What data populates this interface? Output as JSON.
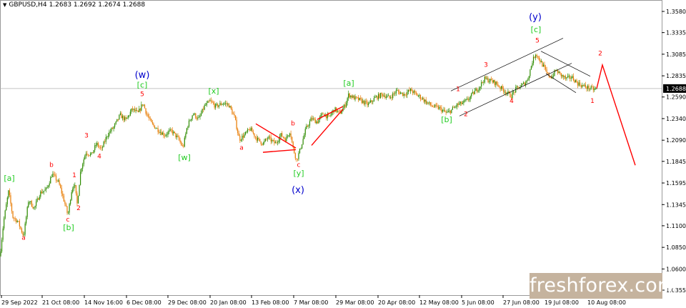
{
  "header": {
    "symbol": "GBPUSD,H4",
    "ohlc": "1.2683 1.2692 1.2674 1.2688"
  },
  "watermark": {
    "text": "freshforex.com"
  },
  "colors": {
    "bull": "#2e8b00",
    "bear": "#e87a00",
    "wave": "#ff0000",
    "green_label": "#22cc22",
    "blue_label": "#0000cc",
    "channel": "#000000",
    "grid": "#e6e6e6",
    "price_tag_bg": "#000000"
  },
  "chart_data": {
    "type": "candlestick",
    "timeframe": "H4",
    "current_price": 1.2688,
    "ylim": [
      1.03,
      1.365
    ],
    "y_ticks": [
      1.358,
      1.3335,
      1.3085,
      1.2835,
      1.259,
      1.234,
      1.209,
      1.1845,
      1.1595,
      1.1345,
      1.11,
      1.085,
      1.06,
      1.0355
    ],
    "x_ticks": [
      "29 Sep 2022",
      "21 Oct 08:00",
      "14 Nov 16:00",
      "6 Dec 08:00",
      "29 Dec 08:00",
      "20 Jan 08:00",
      "13 Feb 08:00",
      "7 Mar 08:00",
      "29 Mar 08:00",
      "20 Apr 08:00",
      "12 May 08:00",
      "5 Jun 08:00",
      "27 Jun 08:00",
      "19 Jul 08:00",
      "10 Aug 08:00"
    ],
    "price_path": [
      [
        0,
        1.075
      ],
      [
        5,
        1.115
      ],
      [
        12,
        1.15
      ],
      [
        18,
        1.12
      ],
      [
        25,
        1.115
      ],
      [
        33,
        1.098
      ],
      [
        40,
        1.14
      ],
      [
        48,
        1.13
      ],
      [
        56,
        1.148
      ],
      [
        65,
        1.152
      ],
      [
        73,
        1.17
      ],
      [
        82,
        1.16
      ],
      [
        90,
        1.138
      ],
      [
        95,
        1.122
      ],
      [
        100,
        1.15
      ],
      [
        104,
        1.16
      ],
      [
        108,
        1.135
      ],
      [
        113,
        1.175
      ],
      [
        120,
        1.195
      ],
      [
        128,
        1.192
      ],
      [
        135,
        1.205
      ],
      [
        142,
        1.198
      ],
      [
        150,
        1.215
      ],
      [
        160,
        1.225
      ],
      [
        168,
        1.238
      ],
      [
        176,
        1.232
      ],
      [
        185,
        1.245
      ],
      [
        193,
        1.24
      ],
      [
        200,
        1.252
      ],
      [
        205,
        1.24
      ],
      [
        212,
        1.228
      ],
      [
        220,
        1.222
      ],
      [
        230,
        1.215
      ],
      [
        240,
        1.22
      ],
      [
        250,
        1.21
      ],
      [
        256,
        1.2
      ],
      [
        262,
        1.225
      ],
      [
        270,
        1.24
      ],
      [
        278,
        1.233
      ],
      [
        286,
        1.248
      ],
      [
        294,
        1.254
      ],
      [
        302,
        1.248
      ],
      [
        312,
        1.252
      ],
      [
        320,
        1.25
      ],
      [
        328,
        1.236
      ],
      [
        335,
        1.21
      ],
      [
        342,
        1.215
      ],
      [
        350,
        1.222
      ],
      [
        360,
        1.21
      ],
      [
        368,
        1.205
      ],
      [
        375,
        1.212
      ],
      [
        385,
        1.205
      ],
      [
        393,
        1.215
      ],
      [
        400,
        1.21
      ],
      [
        406,
        1.22
      ],
      [
        410,
        1.2
      ],
      [
        415,
        1.186
      ],
      [
        420,
        1.198
      ],
      [
        428,
        1.222
      ],
      [
        436,
        1.234
      ],
      [
        444,
        1.23
      ],
      [
        452,
        1.24
      ],
      [
        460,
        1.235
      ],
      [
        468,
        1.245
      ],
      [
        476,
        1.24
      ],
      [
        483,
        1.25
      ],
      [
        488,
        1.262
      ],
      [
        495,
        1.258
      ],
      [
        505,
        1.255
      ],
      [
        515,
        1.25
      ],
      [
        525,
        1.258
      ],
      [
        535,
        1.262
      ],
      [
        545,
        1.258
      ],
      [
        555,
        1.266
      ],
      [
        565,
        1.262
      ],
      [
        575,
        1.267
      ],
      [
        582,
        1.262
      ],
      [
        590,
        1.258
      ],
      [
        598,
        1.252
      ],
      [
        606,
        1.248
      ],
      [
        615,
        1.246
      ],
      [
        625,
        1.24
      ],
      [
        632,
        1.244
      ],
      [
        640,
        1.25
      ],
      [
        648,
        1.252
      ],
      [
        655,
        1.256
      ],
      [
        662,
        1.263
      ],
      [
        670,
        1.27
      ],
      [
        678,
        1.28
      ],
      [
        686,
        1.278
      ],
      [
        694,
        1.275
      ],
      [
        700,
        1.27
      ],
      [
        708,
        1.265
      ],
      [
        715,
        1.26
      ],
      [
        722,
        1.268
      ],
      [
        730,
        1.272
      ],
      [
        738,
        1.278
      ],
      [
        745,
        1.3
      ],
      [
        750,
        1.31
      ],
      [
        755,
        1.302
      ],
      [
        760,
        1.295
      ],
      [
        766,
        1.285
      ],
      [
        772,
        1.282
      ],
      [
        778,
        1.29
      ],
      [
        784,
        1.285
      ],
      [
        792,
        1.28
      ],
      [
        800,
        1.282
      ],
      [
        808,
        1.275
      ],
      [
        815,
        1.272
      ],
      [
        822,
        1.27
      ],
      [
        830,
        1.268
      ],
      [
        835,
        1.268
      ]
    ],
    "projection": [
      [
        835,
        1.2688
      ],
      [
        843,
        1.296
      ],
      [
        889,
        1.18
      ]
    ],
    "wave_labels_red": [
      {
        "t": "a",
        "x": 33,
        "y": 1.094
      },
      {
        "t": "c",
        "x": 95,
        "y": 1.115
      },
      {
        "t": "b",
        "x": 72,
        "y": 1.178
      },
      {
        "t": "1",
        "x": 104,
        "y": 1.166
      },
      {
        "t": "2",
        "x": 110,
        "y": 1.128
      },
      {
        "t": "3",
        "x": 121,
        "y": 1.212
      },
      {
        "t": "4",
        "x": 139,
        "y": 1.188
      },
      {
        "t": "5",
        "x": 199,
        "y": 1.26
      },
      {
        "t": "a",
        "x": 338,
        "y": 1.198
      },
      {
        "t": "b",
        "x": 410,
        "y": 1.226
      },
      {
        "t": "c",
        "x": 418,
        "y": 1.178
      },
      {
        "t": "1",
        "x": 641,
        "y": 1.266
      },
      {
        "t": "2",
        "x": 652,
        "y": 1.237
      },
      {
        "t": "3",
        "x": 680,
        "y": 1.294
      },
      {
        "t": "4",
        "x": 716,
        "y": 1.252
      },
      {
        "t": "5",
        "x": 752,
        "y": 1.322
      },
      {
        "t": "1",
        "x": 829,
        "y": 1.252
      },
      {
        "t": "2",
        "x": 840,
        "y": 1.307
      }
    ],
    "wave_labels_green": [
      {
        "t": "[a]",
        "x": 13,
        "y": 1.162
      },
      {
        "t": "[b]",
        "x": 96,
        "y": 1.105
      },
      {
        "t": "[c]",
        "x": 199,
        "y": 1.27
      },
      {
        "t": "[w]",
        "x": 258,
        "y": 1.186
      },
      {
        "t": "[x]",
        "x": 299,
        "y": 1.263
      },
      {
        "t": "[y]",
        "x": 418,
        "y": 1.168
      },
      {
        "t": "[a]",
        "x": 488,
        "y": 1.272
      },
      {
        "t": "[b]",
        "x": 625,
        "y": 1.23
      },
      {
        "t": "[c]",
        "x": 750,
        "y": 1.334
      }
    ],
    "wave_labels_blue": [
      {
        "t": "(w)",
        "x": 199,
        "y": 1.281
      },
      {
        "t": "(x)",
        "x": 417,
        "y": 1.148
      },
      {
        "t": "(y)",
        "x": 749,
        "y": 1.348
      }
    ],
    "triangle1": [
      [
        [
          358,
          1.228
        ],
        [
          414,
          1.2
        ]
      ],
      [
        [
          368,
          1.195
        ],
        [
          414,
          1.198
        ]
      ]
    ],
    "triangle2": [
      [
        [
          444,
          1.233
        ],
        [
          480,
          1.248
        ]
      ],
      [
        [
          436,
          1.203
        ],
        [
          480,
          1.245
        ]
      ]
    ],
    "channel_main": [
      [
        [
          631,
          1.266
        ],
        [
          788,
          1.327
        ]
      ],
      [
        [
          643,
          1.237
        ],
        [
          800,
          1.298
        ]
      ]
    ],
    "channel_corr": [
      [
        [
          757,
          1.312
        ],
        [
          826,
          1.283
        ]
      ],
      [
        [
          764,
          1.286
        ],
        [
          806,
          1.264
        ]
      ]
    ]
  }
}
